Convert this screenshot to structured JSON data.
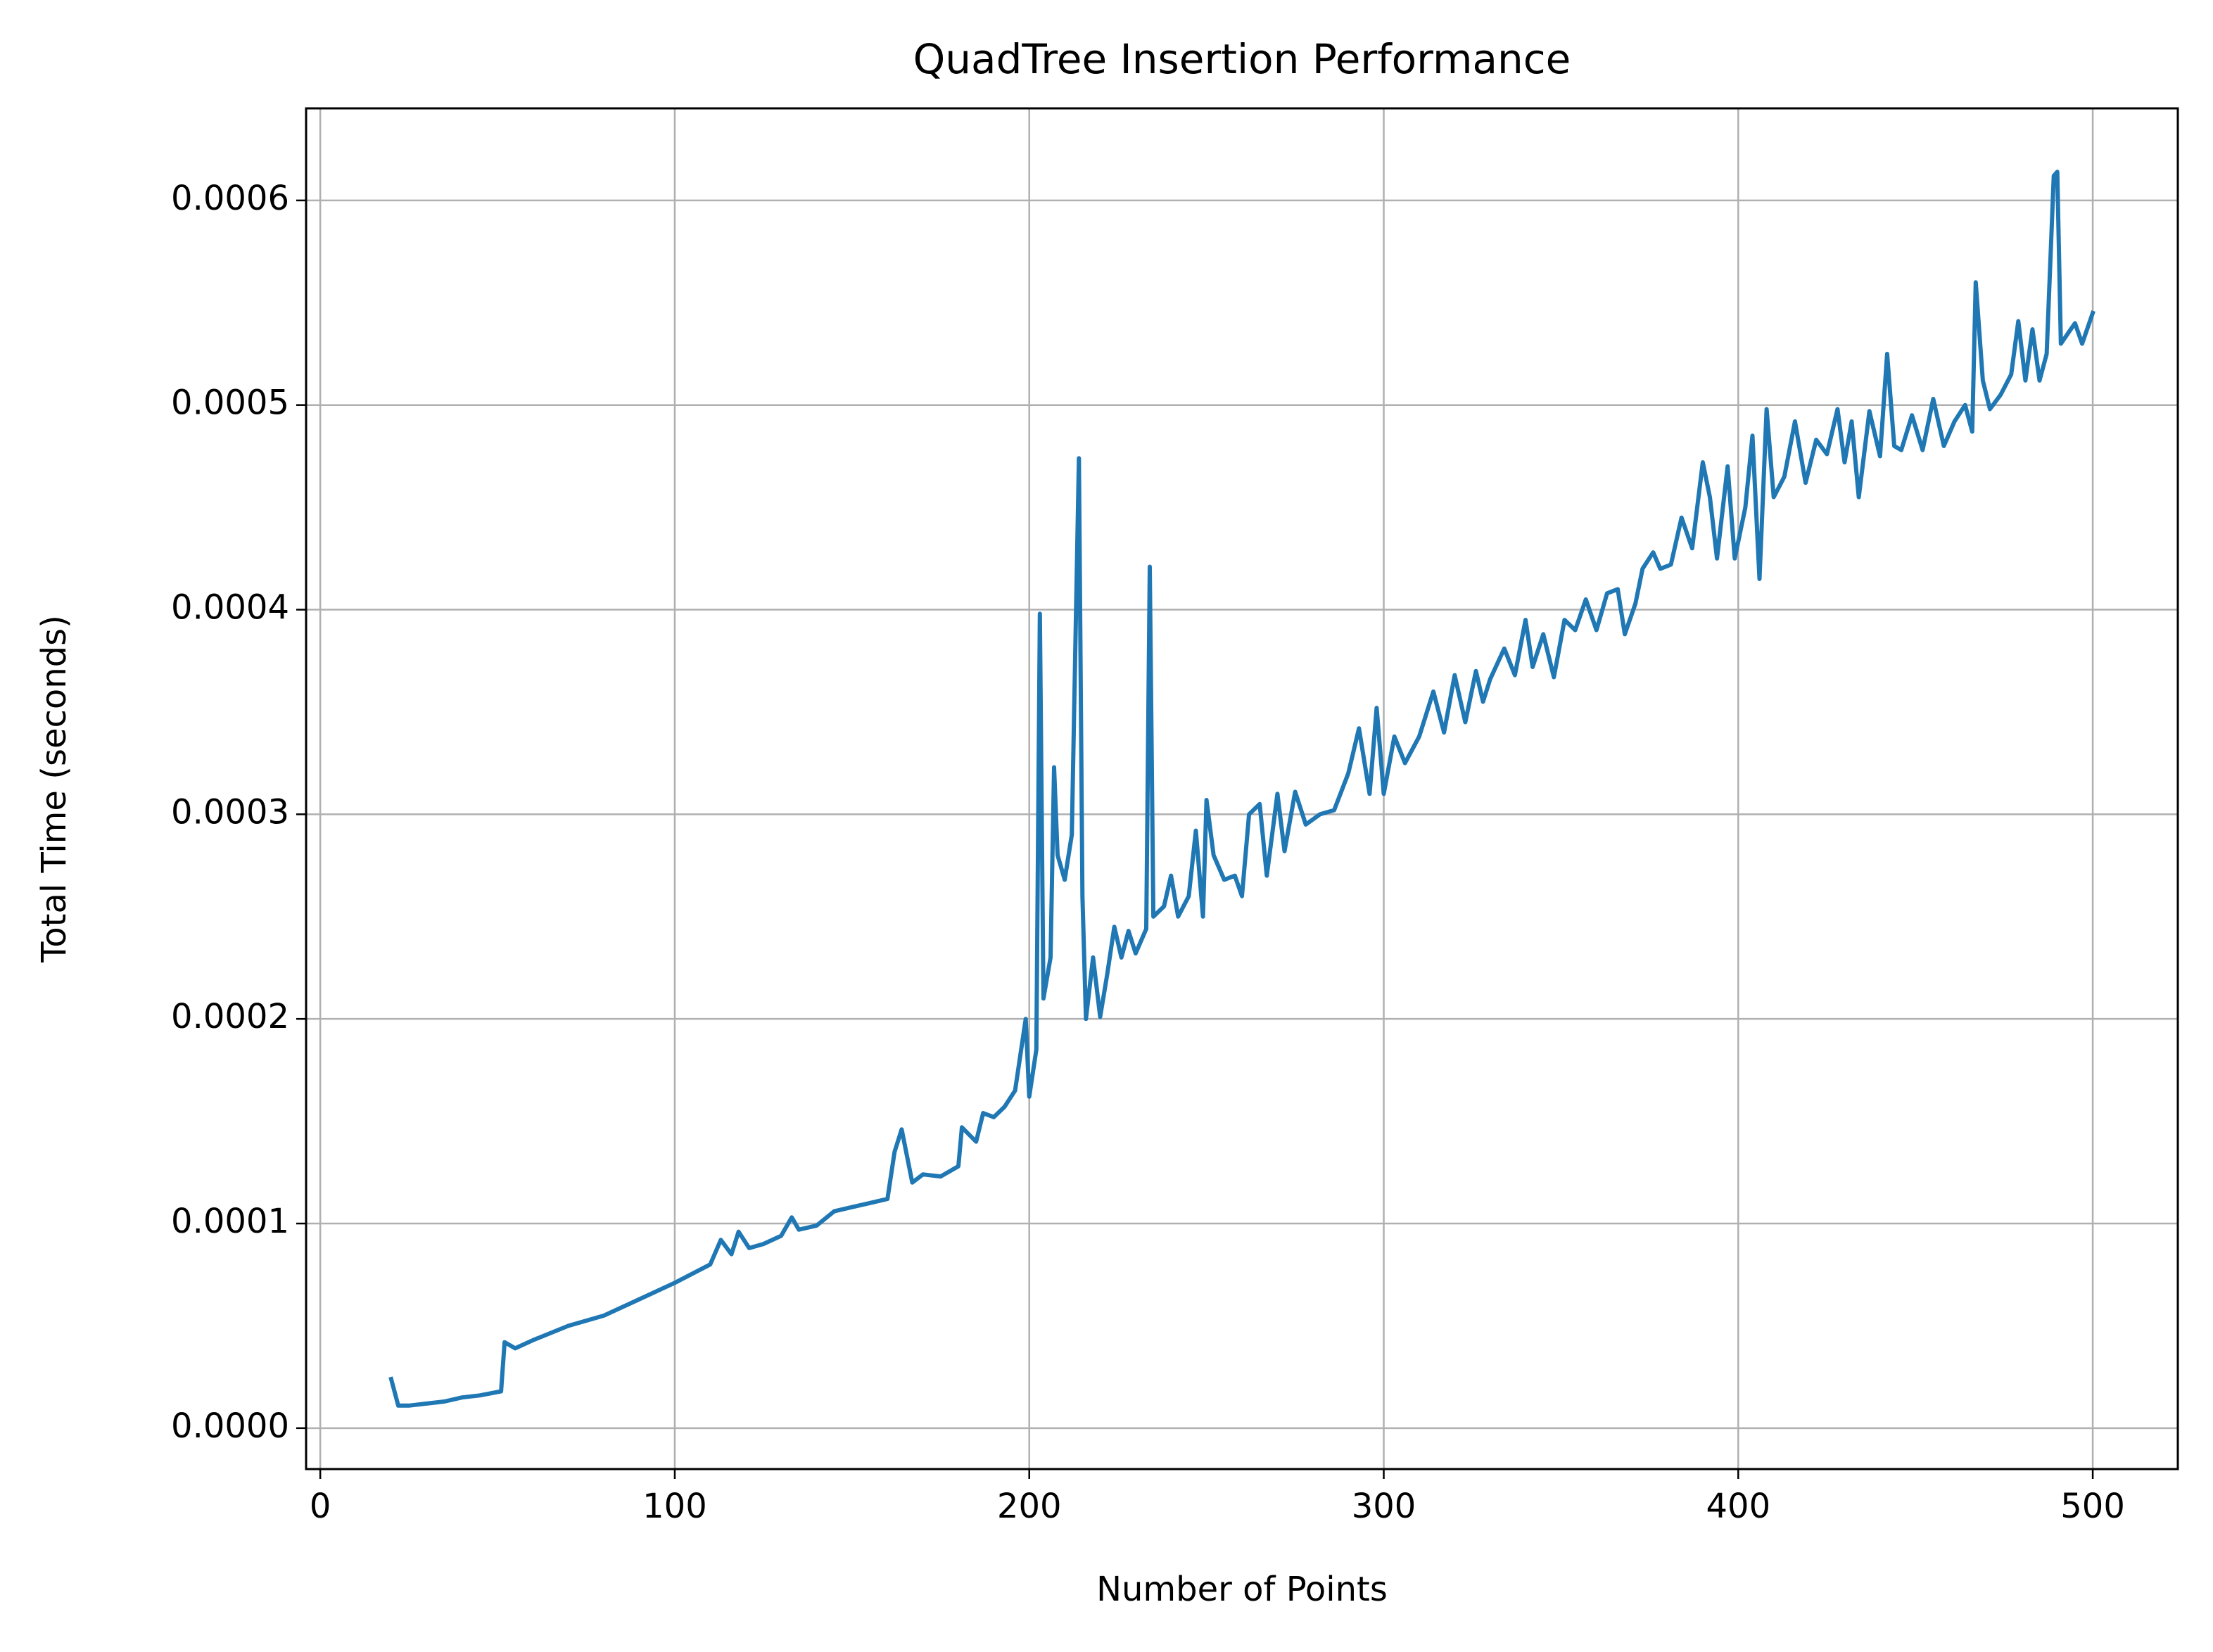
{
  "chart_data": {
    "type": "line",
    "title": "QuadTree Insertion Performance",
    "x_label": "Number of Points",
    "y_label": "Total Time (seconds)",
    "color": "#1f77b4",
    "grid": true,
    "xlim": [
      -4,
      524
    ],
    "ylim": [
      -2e-05,
      0.000645
    ],
    "xticks": [
      0,
      100,
      200,
      300,
      400,
      500
    ],
    "yticks": [
      {
        "value": 0,
        "label": "0.0000"
      },
      {
        "value": 0.0001,
        "label": "0.0001"
      },
      {
        "value": 0.0002,
        "label": "0.0002"
      },
      {
        "value": 0.0003,
        "label": "0.0003"
      },
      {
        "value": 0.0004,
        "label": "0.0004"
      },
      {
        "value": 0.0005,
        "label": "0.0005"
      },
      {
        "value": 0.0006,
        "label": "0.0006"
      }
    ],
    "x": [
      20,
      22,
      25,
      30,
      35,
      40,
      45,
      51,
      52,
      55,
      60,
      70,
      80,
      90,
      100,
      110,
      113,
      116,
      118,
      121,
      125,
      130,
      133,
      135,
      140,
      145,
      150,
      155,
      160,
      162,
      164,
      167,
      170,
      175,
      180,
      181,
      185,
      187,
      190,
      193,
      196,
      199,
      200,
      202,
      203,
      204,
      206,
      207,
      208,
      210,
      212,
      214,
      215,
      216,
      218,
      220,
      222,
      224,
      226,
      228,
      230,
      233,
      234,
      235,
      238,
      240,
      242,
      245,
      247,
      249,
      250,
      252,
      255,
      258,
      260,
      262,
      265,
      267,
      270,
      272,
      275,
      278,
      282,
      286,
      290,
      293,
      296,
      298,
      300,
      303,
      306,
      310,
      314,
      317,
      320,
      323,
      326,
      328,
      330,
      334,
      337,
      340,
      342,
      345,
      348,
      351,
      354,
      357,
      360,
      363,
      366,
      368,
      371,
      373,
      376,
      378,
      381,
      384,
      387,
      390,
      392,
      394,
      397,
      399,
      402,
      404,
      406,
      408,
      410,
      413,
      416,
      419,
      422,
      425,
      428,
      430,
      432,
      434,
      437,
      440,
      442,
      444,
      446,
      449,
      452,
      455,
      458,
      461,
      464,
      466,
      467,
      469,
      471,
      474,
      477,
      479,
      481,
      483,
      485,
      487,
      489,
      490,
      491,
      493,
      495,
      497,
      500
    ],
    "values": [
      2.4e-05,
      1.1e-05,
      1.1e-05,
      1.2e-05,
      1.3e-05,
      1.5e-05,
      1.6e-05,
      1.8e-05,
      4.2e-05,
      3.9e-05,
      4.3e-05,
      5e-05,
      5.5e-05,
      6.3e-05,
      7.1e-05,
      8e-05,
      9.2e-05,
      8.5e-05,
      9.6e-05,
      8.8e-05,
      9e-05,
      9.4e-05,
      0.000103,
      9.7e-05,
      9.9e-05,
      0.000106,
      0.000108,
      0.00011,
      0.000112,
      0.000135,
      0.000146,
      0.00012,
      0.000124,
      0.000123,
      0.000128,
      0.000147,
      0.00014,
      0.000154,
      0.000152,
      0.000157,
      0.000165,
      0.0002,
      0.000162,
      0.000185,
      0.000398,
      0.00021,
      0.00023,
      0.000323,
      0.00028,
      0.000268,
      0.00029,
      0.000474,
      0.00026,
      0.0002,
      0.00023,
      0.000201,
      0.000222,
      0.000245,
      0.00023,
      0.000243,
      0.000232,
      0.000244,
      0.000421,
      0.00025,
      0.000255,
      0.00027,
      0.00025,
      0.00026,
      0.000292,
      0.00025,
      0.000307,
      0.00028,
      0.000268,
      0.00027,
      0.00026,
      0.0003,
      0.000305,
      0.00027,
      0.00031,
      0.000282,
      0.000311,
      0.000295,
      0.0003,
      0.000302,
      0.00032,
      0.000342,
      0.00031,
      0.000352,
      0.00031,
      0.000338,
      0.000325,
      0.000338,
      0.00036,
      0.00034,
      0.000368,
      0.000345,
      0.00037,
      0.000355,
      0.000366,
      0.000381,
      0.000368,
      0.000395,
      0.000372,
      0.000388,
      0.000367,
      0.000395,
      0.00039,
      0.000405,
      0.00039,
      0.000408,
      0.00041,
      0.000388,
      0.000403,
      0.00042,
      0.000428,
      0.00042,
      0.000422,
      0.000445,
      0.00043,
      0.000472,
      0.000455,
      0.000425,
      0.00047,
      0.000425,
      0.00045,
      0.000485,
      0.000415,
      0.000498,
      0.000455,
      0.000465,
      0.000492,
      0.000462,
      0.000483,
      0.000476,
      0.000498,
      0.000472,
      0.000492,
      0.000455,
      0.000497,
      0.000475,
      0.000525,
      0.00048,
      0.000478,
      0.000495,
      0.000478,
      0.000503,
      0.00048,
      0.000492,
      0.0005,
      0.000487,
      0.00056,
      0.000512,
      0.000498,
      0.000505,
      0.000515,
      0.000541,
      0.000512,
      0.000537,
      0.000512,
      0.000525,
      0.000612,
      0.000614,
      0.00053,
      0.000535,
      0.00054,
      0.00053,
      0.000545
    ]
  }
}
